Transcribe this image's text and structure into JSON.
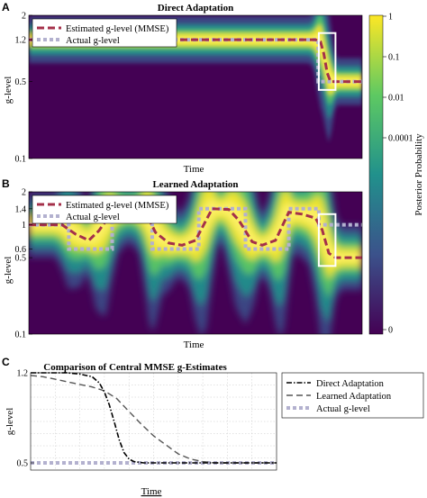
{
  "figure": {
    "panel_letters": [
      "A",
      "B",
      "C"
    ],
    "colorbar": {
      "label": "Posterior Probability",
      "ticks": [
        "1",
        "0.1",
        "0.01",
        "0.0001",
        "0"
      ],
      "colors": [
        "#440154",
        "#3b528b",
        "#21918c",
        "#5ec962",
        "#fde725"
      ]
    }
  },
  "chart_data": [
    {
      "type": "heatmap",
      "panel": "A",
      "title": "Direct Adaptation",
      "xlabel": "Time",
      "ylabel": "g-level",
      "yscale": "log",
      "ylim": [
        0.1,
        2
      ],
      "ytick_labels": [
        "2",
        "1.2",
        "0.5",
        "0.1"
      ],
      "ytick_values": [
        2,
        1.2,
        0.5,
        0.1
      ],
      "xlim": [
        0,
        100
      ],
      "legend": [
        "Estimated g-level (MMSE)",
        "Actual g-level"
      ],
      "legend_position": "top-left",
      "highlight_box": {
        "x": [
          87,
          92
        ],
        "y": [
          0.42,
          1.38
        ]
      },
      "estimated": {
        "x": [
          0,
          10,
          20,
          30,
          40,
          50,
          60,
          70,
          80,
          86,
          87.5,
          88.5,
          89.5,
          90.5,
          92,
          95,
          100
        ],
        "y": [
          1.2,
          1.2,
          1.2,
          1.2,
          1.2,
          1.2,
          1.2,
          1.2,
          1.2,
          1.2,
          1.15,
          0.9,
          0.6,
          0.5,
          0.5,
          0.5,
          0.5
        ]
      },
      "actual": {
        "x": [
          0,
          86.8,
          86.8,
          100
        ],
        "y": [
          1.2,
          1.2,
          0.5,
          0.5
        ]
      }
    },
    {
      "type": "heatmap",
      "panel": "B",
      "title": "Learned Adaptation",
      "xlabel": "Time",
      "ylabel": "g-level",
      "yscale": "log",
      "ylim": [
        0.1,
        2
      ],
      "ytick_labels": [
        "2",
        "1.4",
        "1",
        "0.6",
        "0.5",
        "0.1"
      ],
      "ytick_values": [
        2,
        1.4,
        1,
        0.6,
        0.5,
        0.1
      ],
      "xlim": [
        0,
        100
      ],
      "legend": [
        "Estimated g-level (MMSE)",
        "Actual g-level"
      ],
      "legend_position": "top-left",
      "highlight_box": {
        "x": [
          87,
          92
        ],
        "y": [
          0.42,
          1.25
        ]
      },
      "actual": {
        "x": [
          0,
          12,
          12,
          25,
          25,
          37,
          37,
          51,
          51,
          65,
          65,
          78,
          78,
          87,
          87,
          100
        ],
        "y": [
          1,
          1,
          0.6,
          0.6,
          1.4,
          1.4,
          0.6,
          0.6,
          1.4,
          1.4,
          0.6,
          0.6,
          1.4,
          1.4,
          1,
          1
        ]
      },
      "estimated": {
        "x": [
          0,
          10,
          14,
          18,
          21,
          25,
          30,
          35,
          38,
          42,
          46,
          50,
          55,
          60,
          63,
          67,
          70,
          74,
          78,
          82,
          86,
          88,
          90,
          92,
          100
        ],
        "y": [
          1.0,
          1.0,
          0.82,
          0.72,
          0.88,
          1.3,
          1.35,
          1.3,
          0.85,
          0.68,
          0.65,
          0.72,
          1.4,
          1.38,
          1.1,
          0.7,
          0.65,
          0.72,
          1.3,
          1.25,
          1.15,
          0.9,
          0.55,
          0.5,
          0.5
        ]
      }
    },
    {
      "type": "line",
      "panel": "C",
      "title": "Comparison of Central MMSE g-Estimates",
      "xlabel": "Time",
      "ylabel": "g-level",
      "ylim": [
        0.5,
        1.2
      ],
      "ytick_labels": [
        "1.2",
        "0.5"
      ],
      "ytick_values": [
        1.2,
        0.5
      ],
      "xlim": [
        0,
        100
      ],
      "grid": true,
      "legend_position": "right-outside",
      "series": [
        {
          "name": "Direct Adaptation",
          "x": [
            0,
            5,
            10,
            15,
            20,
            25,
            28,
            30,
            32,
            34,
            36,
            38,
            40,
            42,
            44,
            46,
            48,
            50,
            55,
            60,
            70,
            80,
            90,
            100
          ],
          "y": [
            1.2,
            1.2,
            1.2,
            1.2,
            1.19,
            1.17,
            1.12,
            1.05,
            0.95,
            0.82,
            0.68,
            0.58,
            0.53,
            0.51,
            0.505,
            0.5,
            0.5,
            0.5,
            0.5,
            0.5,
            0.5,
            0.5,
            0.5,
            0.5
          ]
        },
        {
          "name": "Learned Adaptation",
          "x": [
            0,
            5,
            10,
            15,
            20,
            25,
            30,
            35,
            40,
            45,
            50,
            55,
            60,
            65,
            70,
            75,
            80,
            85,
            90,
            95,
            100
          ],
          "y": [
            1.18,
            1.17,
            1.15,
            1.13,
            1.11,
            1.09,
            1.06,
            1.0,
            0.9,
            0.8,
            0.71,
            0.64,
            0.57,
            0.53,
            0.51,
            0.5,
            0.5,
            0.5,
            0.5,
            0.5,
            0.5
          ]
        },
        {
          "name": "Actual g-level",
          "x": [
            0,
            100
          ],
          "y": [
            0.5,
            0.5
          ]
        }
      ]
    }
  ]
}
